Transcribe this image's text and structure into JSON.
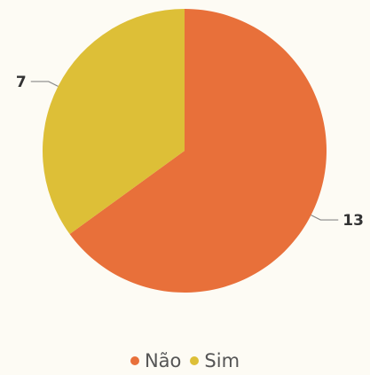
{
  "chart_data": {
    "type": "pie",
    "slices": [
      {
        "label": "Não",
        "value": 13,
        "color": "#e8703a"
      },
      {
        "label": "Sim",
        "value": 7,
        "color": "#ddbf37"
      }
    ],
    "legend_position": "bottom-center",
    "data_label_color": "#333333",
    "leader_line_color": "#888888"
  }
}
